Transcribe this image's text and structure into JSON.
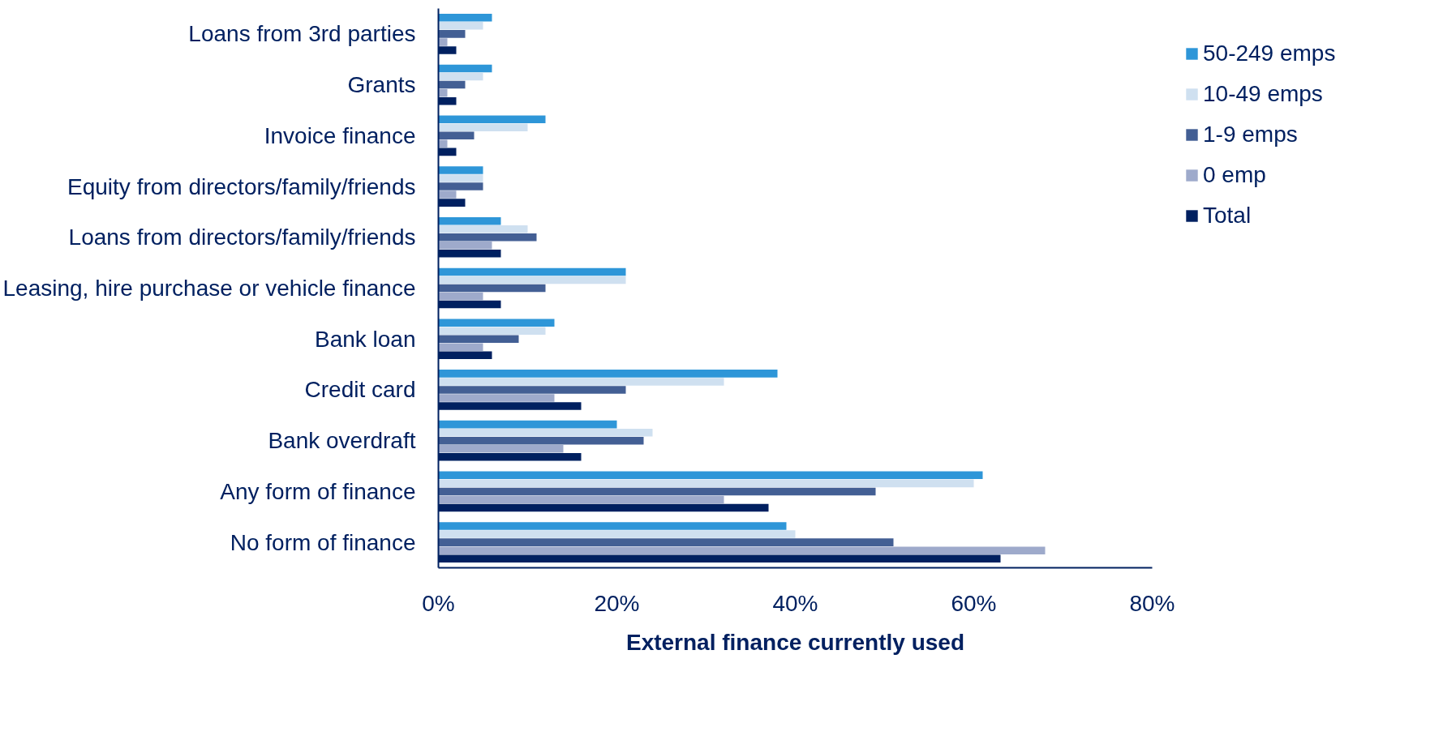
{
  "chart_data": {
    "type": "bar",
    "orientation": "horizontal",
    "xlabel": "External finance currently used",
    "categories": [
      "Loans from 3rd parties",
      "Grants",
      "Invoice finance",
      "Equity from directors/family/friends",
      "Loans from directors/family/friends",
      "Leasing, hire purchase or vehicle finance",
      "Bank loan",
      "Credit card",
      "Bank overdraft",
      "Any form of finance",
      "No form of finance"
    ],
    "series": [
      {
        "name": "50-249 emps",
        "color": "#2e96d8",
        "values": [
          6,
          6,
          12,
          5,
          7,
          21,
          13,
          38,
          20,
          61,
          39
        ]
      },
      {
        "name": "10-49 emps",
        "color": "#cfe0f0",
        "values": [
          5,
          5,
          10,
          5,
          10,
          21,
          12,
          32,
          24,
          60,
          40
        ]
      },
      {
        "name": "1-9 emps",
        "color": "#435f94",
        "values": [
          3,
          3,
          4,
          5,
          11,
          12,
          9,
          21,
          23,
          49,
          51
        ]
      },
      {
        "name": "0 emp",
        "color": "#9eaacb",
        "values": [
          1,
          1,
          1,
          2,
          6,
          5,
          5,
          13,
          14,
          32,
          68
        ]
      },
      {
        "name": "Total",
        "color": "#002060",
        "values": [
          2,
          2,
          2,
          3,
          7,
          7,
          6,
          16,
          16,
          37,
          63
        ]
      }
    ],
    "xlim": [
      0,
      80
    ],
    "xticks": [
      {
        "value": 0,
        "label": "0%"
      },
      {
        "value": 20,
        "label": "20%"
      },
      {
        "value": 40,
        "label": "40%"
      },
      {
        "value": 60,
        "label": "60%"
      },
      {
        "value": 80,
        "label": "80%"
      }
    ],
    "grid": false,
    "legend": "right"
  }
}
